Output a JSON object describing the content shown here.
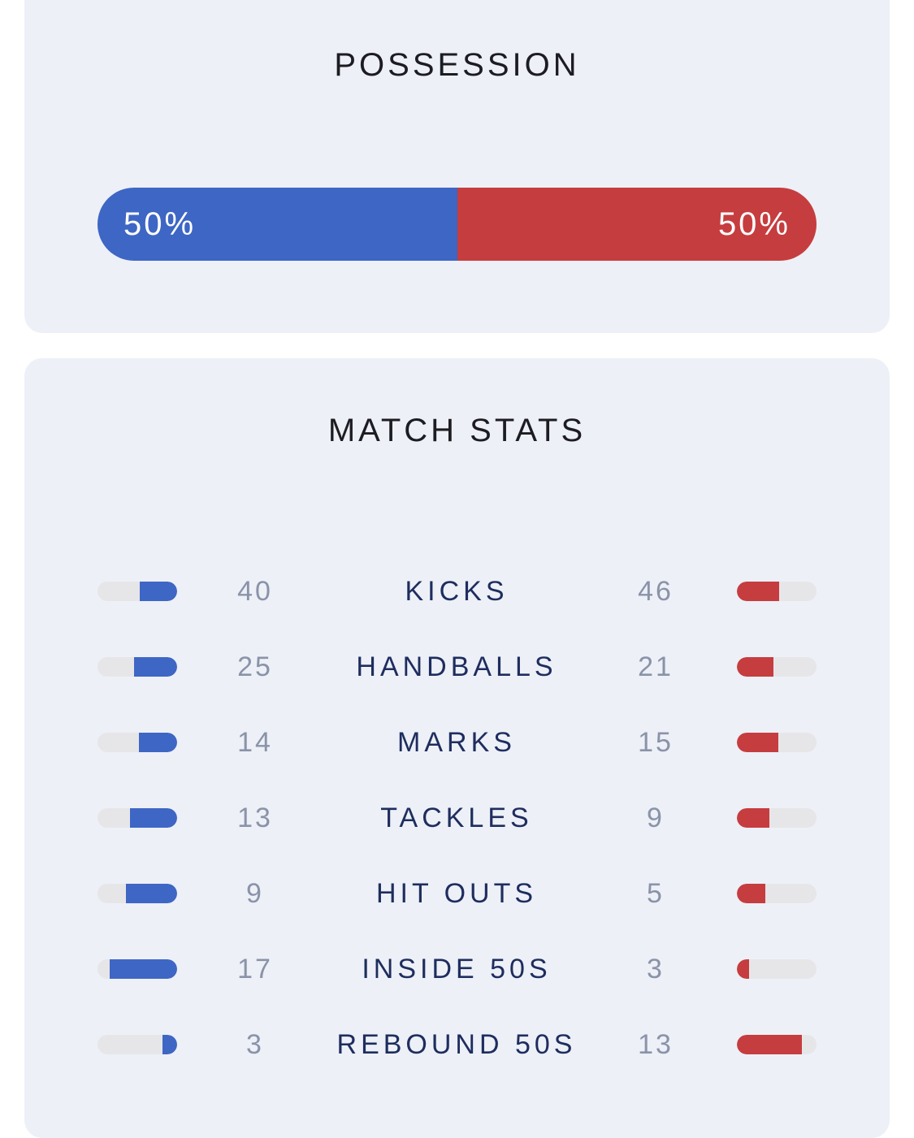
{
  "colors": {
    "home": "#3e66c4",
    "away": "#c63d3f",
    "track": "#e6e6e8",
    "card": "#edf0f7"
  },
  "possession": {
    "title": "POSSESSION",
    "home_pct": 50,
    "away_pct": 50,
    "home_label": "50%",
    "away_label": "50%"
  },
  "match_stats": {
    "title": "MATCH STATS",
    "rows": [
      {
        "label": "KICKS",
        "home": 40,
        "away": 46
      },
      {
        "label": "HANDBALLS",
        "home": 25,
        "away": 21
      },
      {
        "label": "MARKS",
        "home": 14,
        "away": 15
      },
      {
        "label": "TACKLES",
        "home": 13,
        "away": 9
      },
      {
        "label": "HIT OUTS",
        "home": 9,
        "away": 5
      },
      {
        "label": "INSIDE 50S",
        "home": 17,
        "away": 3
      },
      {
        "label": "REBOUND 50S",
        "home": 3,
        "away": 13
      }
    ]
  }
}
